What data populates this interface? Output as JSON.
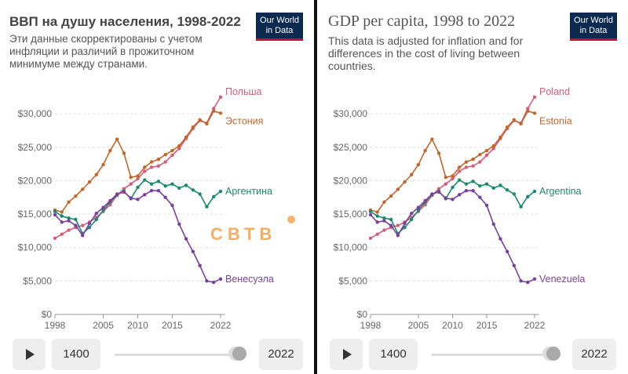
{
  "left": {
    "title": "ВВП на душу населения, 1998-2022",
    "subtitle": "Эти данные скорректированы с учетом инфляции и различий в прожиточном минимуме между странами.",
    "logo": {
      "line1": "Our World",
      "line2": "in Data"
    },
    "series_labels": [
      "Польша",
      "Эстония",
      "Аргентина",
      "Венесуэла"
    ],
    "controls": {
      "start_year": "1400",
      "end_year": "2022"
    },
    "watermark": "СВТВ"
  },
  "right": {
    "title": "GDP per capita, 1998 to 2022",
    "subtitle": "This data is adjusted for inflation and for differences in the cost of living between countries.",
    "logo": {
      "line1": "Our World",
      "line2": "in Data"
    },
    "series_labels": [
      "Poland",
      "Estonia",
      "Argentina",
      "Venezuela"
    ],
    "controls": {
      "start_year": "1400",
      "end_year": "2022"
    }
  },
  "colors": {
    "poland": "#d65d79",
    "estonia": "#c4662a",
    "argentina": "#1a8a6e",
    "venezuela": "#7b3f9e",
    "logo_bg": "#0c2a50",
    "logo_accent": "#c8102e"
  },
  "chart_data": {
    "type": "line",
    "x": [
      1998,
      1999,
      2000,
      2001,
      2002,
      2003,
      2004,
      2005,
      2006,
      2007,
      2008,
      2009,
      2010,
      2011,
      2012,
      2013,
      2014,
      2015,
      2016,
      2017,
      2018,
      2019,
      2020,
      2021,
      2022
    ],
    "series": [
      {
        "name": "Poland",
        "values": [
          11400,
          12000,
          12600,
          13000,
          13300,
          13800,
          14500,
          15400,
          16400,
          17800,
          18800,
          19500,
          20300,
          21400,
          22000,
          22200,
          22800,
          23800,
          24800,
          26300,
          27800,
          29000,
          28600,
          30800,
          32500
        ]
      },
      {
        "name": "Estonia",
        "values": [
          15600,
          15300,
          16800,
          17700,
          18700,
          19800,
          20900,
          22400,
          24500,
          26200,
          24100,
          20500,
          20700,
          22000,
          22800,
          23200,
          23900,
          24500,
          25200,
          26500,
          28000,
          29100,
          28500,
          30400,
          30100
        ]
      },
      {
        "name": "Argentina",
        "values": [
          15400,
          14700,
          14400,
          14200,
          12100,
          13000,
          14200,
          15600,
          16800,
          17900,
          18400,
          17300,
          19000,
          20100,
          19500,
          19900,
          19200,
          19500,
          18900,
          19300,
          18600,
          18000,
          16100,
          17600,
          18400
        ]
      },
      {
        "name": "Venezuela",
        "values": [
          14900,
          13800,
          14000,
          13300,
          11800,
          13600,
          15100,
          16000,
          17000,
          18000,
          18300,
          17400,
          17200,
          17900,
          18500,
          18500,
          17500,
          16300,
          13500,
          11300,
          9400,
          7300,
          5000,
          4800,
          5300
        ]
      }
    ],
    "yticks": [
      "$0",
      "$5,000",
      "$10,000",
      "$15,000",
      "$20,000",
      "$25,000",
      "$30,000"
    ],
    "xticks": [
      "1998",
      "2005",
      "2010",
      "2015",
      "2022"
    ],
    "ylim": [
      0,
      34000
    ],
    "xlim": [
      1998,
      2022
    ]
  }
}
